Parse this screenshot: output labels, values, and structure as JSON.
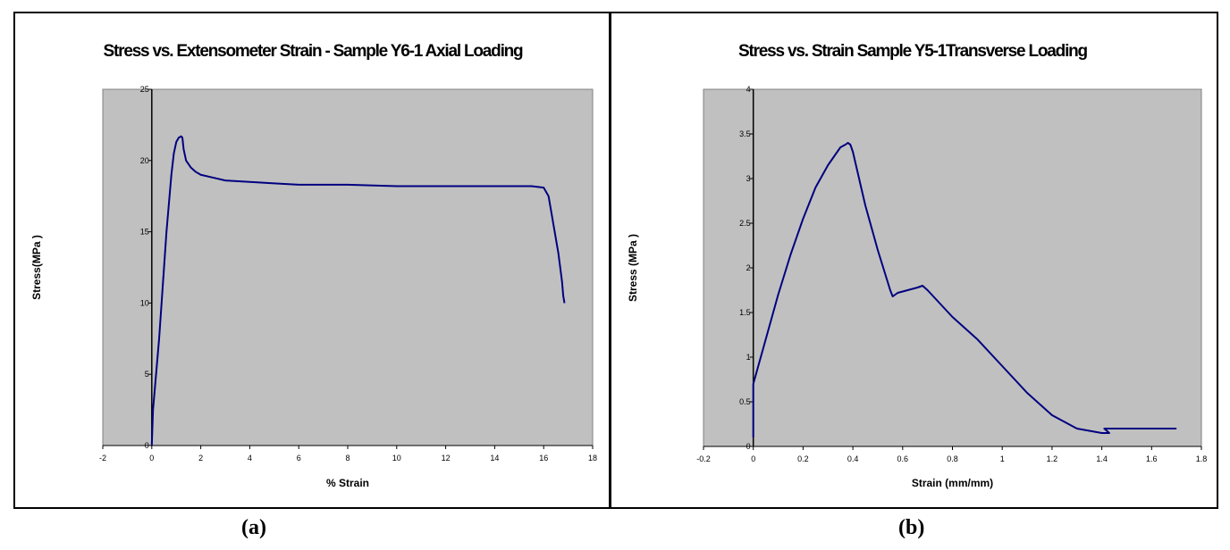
{
  "chart_data": [
    {
      "type": "line",
      "title": "Stress vs. Extensometer Strain - Sample Y6-1 Axial Loading",
      "xlabel": "% Strain",
      "ylabel": "Stress(MPa )",
      "caption": "(a)",
      "xlim": [
        -2,
        18
      ],
      "ylim": [
        0,
        25
      ],
      "xticks": [
        "-2",
        "0",
        "2",
        "4",
        "6",
        "8",
        "10",
        "12",
        "14",
        "16",
        "18"
      ],
      "yticks": [
        "0",
        "5",
        "10",
        "15",
        "20",
        "25"
      ],
      "grid": false,
      "plot_bg": "#c0c0c0",
      "line_color": "#000080",
      "series": [
        {
          "x": [
            0.0,
            0.05,
            0.1,
            0.15,
            0.2,
            0.3,
            0.4,
            0.5,
            0.6,
            0.7,
            0.8,
            0.9,
            1.0,
            1.1,
            1.2,
            1.25,
            1.3,
            1.4,
            1.6,
            1.8,
            2.0,
            2.5,
            3.0,
            4.0,
            5.0,
            6.0,
            8.0,
            10.0,
            12.0,
            14.0,
            15.5,
            16.0,
            16.2,
            16.4,
            16.6,
            16.75,
            16.8,
            16.85
          ],
          "y": [
            0.0,
            2.5,
            3.5,
            4.5,
            5.5,
            7.5,
            10.0,
            12.5,
            15.0,
            17.0,
            19.0,
            20.5,
            21.3,
            21.6,
            21.7,
            21.6,
            20.8,
            20.0,
            19.5,
            19.2,
            19.0,
            18.8,
            18.6,
            18.5,
            18.4,
            18.3,
            18.3,
            18.2,
            18.2,
            18.2,
            18.2,
            18.1,
            17.5,
            15.5,
            13.5,
            11.5,
            10.5,
            10.0
          ]
        }
      ]
    },
    {
      "type": "line",
      "title": "Stress vs. Strain Sample Y5-1Transverse Loading",
      "xlabel": "Strain (mm/mm)",
      "ylabel": "Stress (MPa )",
      "caption": "(b)",
      "xlim": [
        -0.2,
        1.8
      ],
      "ylim": [
        0,
        4
      ],
      "xticks": [
        "-0.2",
        "0",
        "0.2",
        "0.4",
        "0.6",
        "0.8",
        "1",
        "1.2",
        "1.4",
        "1.6",
        "1.8"
      ],
      "yticks": [
        "0",
        "0.5",
        "1",
        "1.5",
        "2",
        "2.5",
        "3",
        "3.5",
        "4"
      ],
      "grid": false,
      "plot_bg": "#c0c0c0",
      "line_color": "#000080",
      "series": [
        {
          "x": [
            0.0,
            0.0,
            0.01,
            0.02,
            0.05,
            0.08,
            0.1,
            0.15,
            0.2,
            0.25,
            0.3,
            0.35,
            0.37,
            0.38,
            0.39,
            0.4,
            0.45,
            0.5,
            0.55,
            0.56,
            0.58,
            0.62,
            0.66,
            0.68,
            0.7,
            0.75,
            0.8,
            0.9,
            1.0,
            1.1,
            1.2,
            1.3,
            1.38,
            1.4,
            1.43,
            1.41,
            1.5,
            1.6,
            1.7
          ],
          "y": [
            0.1,
            0.7,
            0.8,
            0.9,
            1.2,
            1.5,
            1.7,
            2.15,
            2.55,
            2.9,
            3.15,
            3.35,
            3.38,
            3.4,
            3.38,
            3.3,
            2.7,
            2.2,
            1.75,
            1.68,
            1.72,
            1.75,
            1.78,
            1.8,
            1.75,
            1.6,
            1.45,
            1.2,
            0.9,
            0.6,
            0.35,
            0.2,
            0.16,
            0.15,
            0.15,
            0.2,
            0.2,
            0.2,
            0.2
          ]
        }
      ]
    }
  ]
}
